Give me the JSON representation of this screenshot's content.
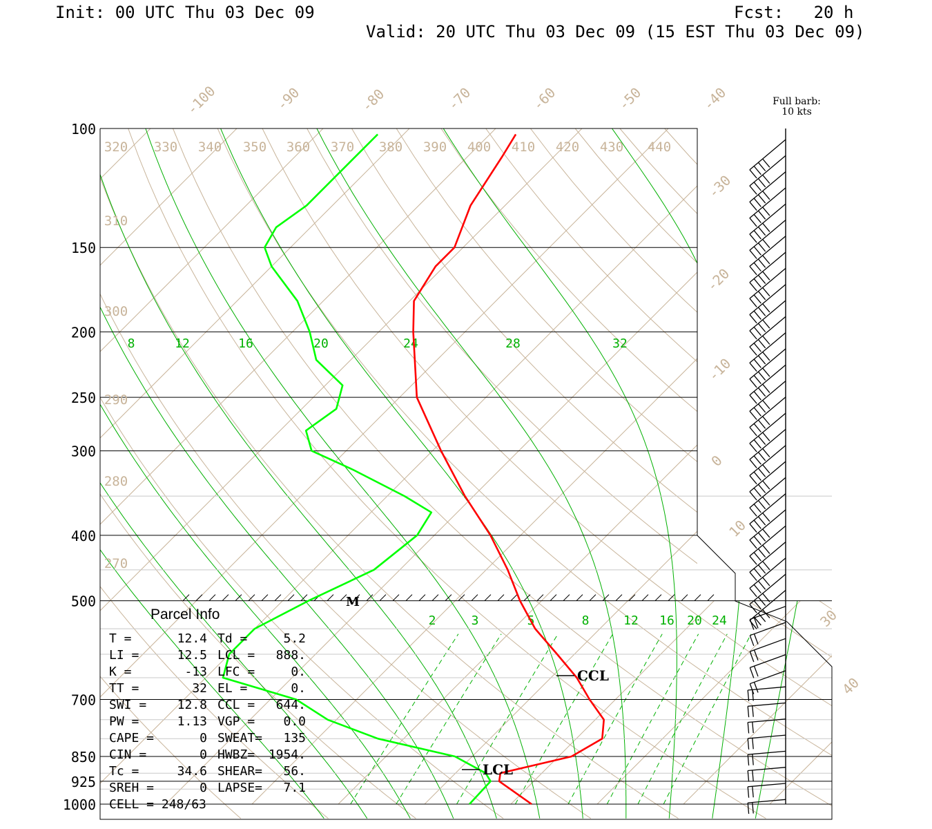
{
  "header": {
    "init": "Init: 00 UTC Thu 03 Dec 09",
    "fcst": "Fcst:   20 h",
    "valid": "Valid: 20 UTC Thu 03 Dec 09 (15 EST Thu 03 Dec 09)"
  },
  "wind_barb_note": {
    "line1": "Full barb:",
    "line2": "10 kts"
  },
  "colors": {
    "temperature": "#ff0000",
    "dewpoint": "#00ff00",
    "mixing_ratio": "#00b000",
    "isotherm": "#c8b49a",
    "grid": "#000000"
  },
  "parcel_info": {
    "title": "Parcel Info",
    "rows": [
      {
        "left": "T  =",
        "lval": "12.4",
        "right": "Td =",
        "rval": "5.2"
      },
      {
        "left": "LI =",
        "lval": "12.5",
        "right": "LCL =",
        "rval": "888."
      },
      {
        "left": "K  =",
        "lval": "-13",
        "right": "LFC =",
        "rval": "0."
      },
      {
        "left": "TT =",
        "lval": "32",
        "right": "EL  =",
        "rval": "0."
      },
      {
        "left": "SWI =",
        "lval": "12.8",
        "right": "CCL =",
        "rval": "644."
      },
      {
        "left": "PW =",
        "lval": "1.13",
        "right": "VGP =",
        "rval": "0.0"
      },
      {
        "left": "CAPE =",
        "lval": "0",
        "right": "SWEAT=",
        "rval": "135"
      },
      {
        "left": "CIN =",
        "lval": "0",
        "right": "HWBZ=",
        "rval": "1954."
      },
      {
        "left": "Tc =",
        "lval": "34.6",
        "right": "SHEAR=",
        "rval": "56."
      },
      {
        "left": "SREH =",
        "lval": "0",
        "right": "LAPSE=",
        "rval": "7.1"
      },
      {
        "left": "CELL = 248/63",
        "lval": "",
        "right": "",
        "rval": ""
      }
    ]
  },
  "chart_data": {
    "type": "line",
    "pressure_ticks": [
      "100",
      "150",
      "200",
      "250",
      "300",
      "400",
      "500",
      "700",
      "850",
      "925",
      "1000"
    ],
    "isotherm_labels": [
      "-100",
      "-90",
      "-80",
      "-70",
      "-60",
      "-50",
      "-40",
      "-30",
      "-20",
      "-10",
      "0",
      "10",
      "30",
      "40"
    ],
    "theta_labels": [
      "320",
      "330",
      "340",
      "350",
      "360",
      "370",
      "380",
      "390",
      "400",
      "410",
      "420",
      "430",
      "440",
      "310",
      "300",
      "290",
      "280",
      "270"
    ],
    "mixing_ratio_labels_upper": [
      "8",
      "12",
      "16",
      "20",
      "24",
      "28",
      "32"
    ],
    "mixing_ratio_labels_lower": [
      "2",
      "3",
      "5",
      "8",
      "12",
      "16",
      "20",
      "24"
    ],
    "annotations": {
      "ccl": "CCL",
      "lcl": "LCL",
      "melting_marker": "M"
    },
    "series": [
      {
        "key": "temperature",
        "points": [
          [
            1000,
            12.4
          ],
          [
            925,
            6.0
          ],
          [
            900,
            5.2
          ],
          [
            850,
            11.5
          ],
          [
            800,
            13.0
          ],
          [
            750,
            11.0
          ],
          [
            700,
            7.0
          ],
          [
            650,
            3.0
          ],
          [
            600,
            -2.0
          ],
          [
            550,
            -7.5
          ],
          [
            500,
            -12.5
          ],
          [
            450,
            -17.5
          ],
          [
            400,
            -23.5
          ],
          [
            350,
            -31.0
          ],
          [
            300,
            -39.0
          ],
          [
            250,
            -48.0
          ],
          [
            200,
            -56.0
          ],
          [
            180,
            -59.5
          ],
          [
            160,
            -61.0
          ],
          [
            150,
            -61.0
          ],
          [
            130,
            -64.0
          ],
          [
            110,
            -66.0
          ],
          [
            102,
            -67.0
          ]
        ]
      },
      {
        "key": "dewpoint",
        "points": [
          [
            1000,
            5.2
          ],
          [
            925,
            5.0
          ],
          [
            900,
            3.5
          ],
          [
            850,
            -2.0
          ],
          [
            800,
            -13.0
          ],
          [
            750,
            -21.0
          ],
          [
            700,
            -27.0
          ],
          [
            650,
            -38.0
          ],
          [
            600,
            -40.0
          ],
          [
            550,
            -40.0
          ],
          [
            500,
            -37.0
          ],
          [
            450,
            -33.0
          ],
          [
            400,
            -32.0
          ],
          [
            370,
            -33.0
          ],
          [
            350,
            -38.0
          ],
          [
            320,
            -47.0
          ],
          [
            300,
            -54.0
          ],
          [
            280,
            -57.0
          ],
          [
            260,
            -56.0
          ],
          [
            240,
            -58.0
          ],
          [
            220,
            -64.0
          ],
          [
            200,
            -68.0
          ],
          [
            180,
            -73.0
          ],
          [
            160,
            -80.0
          ],
          [
            150,
            -83.0
          ],
          [
            140,
            -84.0
          ],
          [
            130,
            -83.0
          ],
          [
            115,
            -83.0
          ],
          [
            102,
            -83.0
          ]
        ]
      }
    ]
  }
}
